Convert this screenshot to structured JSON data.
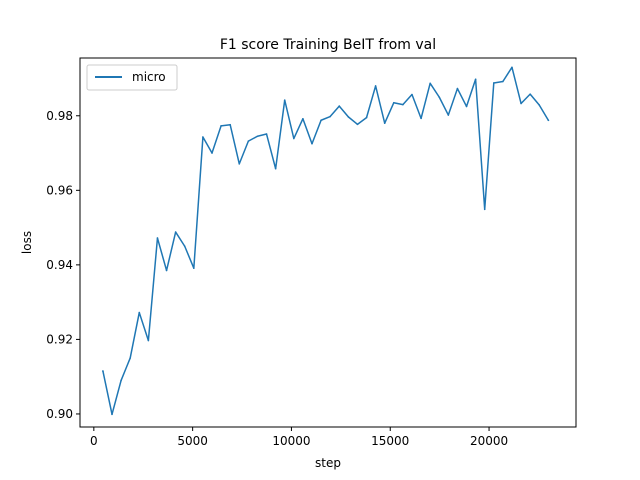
{
  "chart_data": {
    "type": "line",
    "title": "F1 score Training BeIT from val",
    "xlabel": "step",
    "ylabel": "loss",
    "xlim": [
      -700,
      24400
    ],
    "ylim": [
      0.8965,
      0.9955
    ],
    "xticks": [
      0,
      5000,
      10000,
      15000,
      20000
    ],
    "xtick_labels": [
      "0",
      "5000",
      "10000",
      "15000",
      "20000"
    ],
    "yticks": [
      0.9,
      0.92,
      0.94,
      0.96,
      0.98
    ],
    "ytick_labels": [
      "0.90",
      "0.92",
      "0.94",
      "0.96",
      "0.98"
    ],
    "grid": false,
    "legend_position": "upper-left",
    "colors": {
      "micro": "#1f77b4",
      "axes": "#000000",
      "background": "#ffffff"
    },
    "series": [
      {
        "name": "micro",
        "x": [
          460,
          920,
          1380,
          1840,
          2300,
          2760,
          3220,
          3680,
          4140,
          4600,
          5060,
          5520,
          5980,
          6440,
          6900,
          7360,
          7820,
          8280,
          8740,
          9200,
          9660,
          10120,
          10580,
          11040,
          11500,
          11960,
          12420,
          12880,
          13340,
          13800,
          14260,
          14720,
          15180,
          15640,
          16100,
          16560,
          17020,
          17480,
          17940,
          18400,
          18860,
          19320,
          19780,
          20240,
          20700,
          21160,
          21620,
          22080,
          22540,
          23000
        ],
        "y": [
          0.9115,
          0.8999,
          0.909,
          0.915,
          0.9272,
          0.9197,
          0.9472,
          0.9385,
          0.9488,
          0.945,
          0.9391,
          0.9743,
          0.97,
          0.9773,
          0.9776,
          0.9671,
          0.9732,
          0.9745,
          0.9751,
          0.9658,
          0.9842,
          0.9739,
          0.9792,
          0.9725,
          0.9788,
          0.9798,
          0.9826,
          0.9797,
          0.9777,
          0.9795,
          0.988,
          0.978,
          0.9835,
          0.983,
          0.9857,
          0.9793,
          0.9887,
          0.985,
          0.9802,
          0.9873,
          0.9825,
          0.9898,
          0.9549,
          0.9888,
          0.9892,
          0.993,
          0.9833,
          0.9858,
          0.9829,
          0.9788
        ]
      }
    ]
  }
}
